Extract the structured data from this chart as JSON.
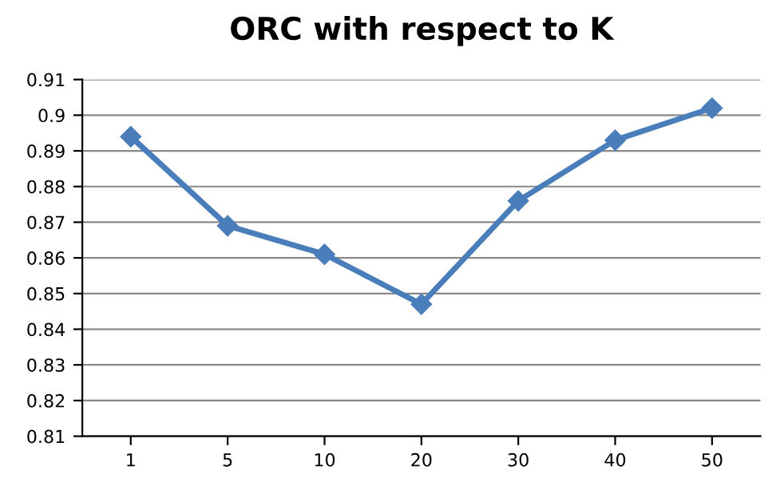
{
  "chart_data": {
    "type": "line",
    "title": "ORC with respect to K",
    "categories": [
      "1",
      "5",
      "10",
      "20",
      "30",
      "40",
      "50"
    ],
    "series": [
      {
        "color": "#4a7ebb",
        "values": [
          0.894,
          0.869,
          0.861,
          0.847,
          0.876,
          0.893,
          0.902
        ]
      }
    ],
    "ylim": [
      0.81,
      0.91
    ],
    "yticks": [
      0.81,
      0.82,
      0.83,
      0.84,
      0.85,
      0.86,
      0.87,
      0.88,
      0.89,
      0.9,
      0.91
    ],
    "grid": "y",
    "marker": "diamond",
    "line_style": "solid"
  }
}
